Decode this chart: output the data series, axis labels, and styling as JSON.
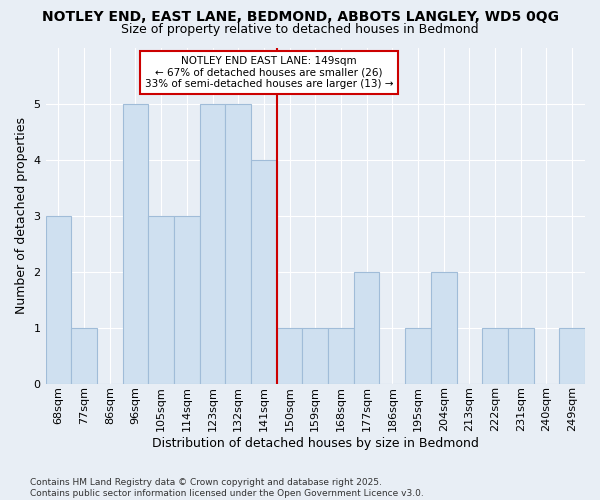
{
  "title1": "NOTLEY END, EAST LANE, BEDMOND, ABBOTS LANGLEY, WD5 0QG",
  "title2": "Size of property relative to detached houses in Bedmond",
  "xlabel": "Distribution of detached houses by size in Bedmond",
  "ylabel": "Number of detached properties",
  "footnote": "Contains HM Land Registry data © Crown copyright and database right 2025.\nContains public sector information licensed under the Open Government Licence v3.0.",
  "categories": [
    "68sqm",
    "77sqm",
    "86sqm",
    "96sqm",
    "105sqm",
    "114sqm",
    "123sqm",
    "132sqm",
    "141sqm",
    "150sqm",
    "159sqm",
    "168sqm",
    "177sqm",
    "186sqm",
    "195sqm",
    "204sqm",
    "213sqm",
    "222sqm",
    "231sqm",
    "240sqm",
    "249sqm"
  ],
  "values": [
    3,
    1,
    0,
    5,
    3,
    3,
    5,
    5,
    4,
    1,
    1,
    1,
    2,
    0,
    1,
    2,
    0,
    1,
    1,
    0,
    1
  ],
  "bar_color": "#cfe0f0",
  "bar_edge_color": "#a0bcd8",
  "property_line_label": "NOTLEY END EAST LANE: 149sqm",
  "annotation_line1": "← 67% of detached houses are smaller (26)",
  "annotation_line2": "33% of semi-detached houses are larger (13) →",
  "annotation_box_color": "#ffffff",
  "annotation_box_edge_color": "#cc0000",
  "property_line_color": "#cc0000",
  "property_line_index": 8.5,
  "ylim": [
    0,
    6
  ],
  "yticks": [
    0,
    1,
    2,
    3,
    4,
    5,
    6
  ],
  "background_color": "#e8eef5",
  "plot_bg_color": "#e8eef5",
  "grid_color": "#ffffff",
  "title1_fontsize": 10,
  "title2_fontsize": 9,
  "xlabel_fontsize": 9,
  "ylabel_fontsize": 9,
  "tick_fontsize": 8,
  "footnote_fontsize": 6.5
}
